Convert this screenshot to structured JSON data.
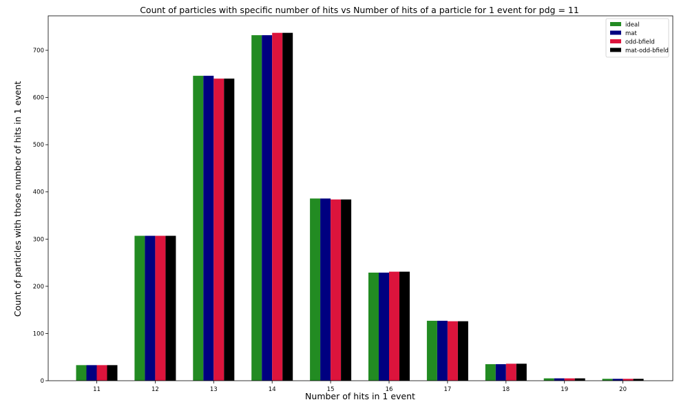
{
  "chart_data": {
    "type": "bar",
    "title": "Count of particles with specific number of hits vs Number of hits of a particle for 1 event for pdg = 11",
    "xlabel": "Number of hits in 1 event",
    "ylabel": "Count of particles with those number of hits in 1 event",
    "categories": [
      "11",
      "12",
      "13",
      "14",
      "15",
      "16",
      "17",
      "18",
      "19",
      "20"
    ],
    "ylim": [
      0,
      773
    ],
    "yticks": [
      0,
      100,
      200,
      300,
      400,
      500,
      600,
      700
    ],
    "grid": false,
    "legend_position": "top-right",
    "series": [
      {
        "name": "ideal",
        "color": "#228b22",
        "values": [
          33,
          307,
          646,
          732,
          386,
          229,
          127,
          35,
          5,
          4
        ]
      },
      {
        "name": "mat",
        "color": "#000080",
        "values": [
          33,
          307,
          646,
          732,
          386,
          229,
          127,
          35,
          5,
          4
        ]
      },
      {
        "name": "odd-bfield",
        "color": "#dc143c",
        "values": [
          33,
          307,
          640,
          737,
          384,
          231,
          126,
          36,
          5,
          4
        ]
      },
      {
        "name": "mat-odd-bfield",
        "color": "#000000",
        "values": [
          33,
          307,
          640,
          737,
          384,
          231,
          126,
          36,
          5,
          4
        ]
      }
    ]
  }
}
